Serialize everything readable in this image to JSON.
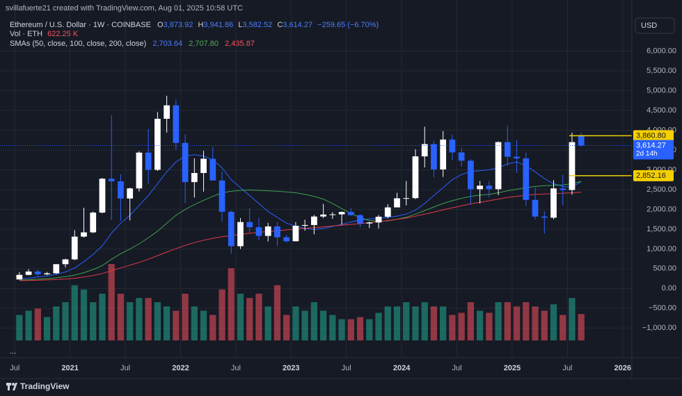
{
  "header": {
    "credit": "svillafuerte21 created with TradingView.com, Aug 01, 2025 10:58 UTC",
    "symbol": "Ethereum / U.S. Dollar · 1W · COINBASE",
    "ohlc": [
      {
        "label": "O",
        "value": "3,873.92"
      },
      {
        "label": "H",
        "value": "3,941.86"
      },
      {
        "label": "L",
        "value": "3,582.52"
      },
      {
        "label": "C",
        "value": "3,614.27"
      }
    ],
    "change": "−259.65 (−6.70%)",
    "volume": {
      "label": "Vol · ETH",
      "value": "622.25 K"
    },
    "sma": {
      "label": "SMAs (50, close, 100, close, 200, close)",
      "values": [
        "2,703.64",
        "2,707.80",
        "2,435.87"
      ]
    },
    "currency": "USD",
    "more": "...",
    "brand": "TradingView"
  },
  "chart_data": {
    "type": "candlestick",
    "x": [
      "2020-07",
      "2020-08",
      "2020-09",
      "2020-10",
      "2020-11",
      "2020-12",
      "2021-01",
      "2021-02",
      "2021-03",
      "2021-04",
      "2021-05",
      "2021-06",
      "2021-07",
      "2021-08",
      "2021-09",
      "2021-10",
      "2021-11",
      "2021-12",
      "2022-01",
      "2022-02",
      "2022-03",
      "2022-04",
      "2022-05",
      "2022-06",
      "2022-07",
      "2022-08",
      "2022-09",
      "2022-10",
      "2022-11",
      "2022-12",
      "2023-01",
      "2023-02",
      "2023-03",
      "2023-04",
      "2023-05",
      "2023-06",
      "2023-07",
      "2023-08",
      "2023-09",
      "2023-10",
      "2023-11",
      "2023-12",
      "2024-01",
      "2024-02",
      "2024-03",
      "2024-04",
      "2024-05",
      "2024-06",
      "2024-07",
      "2024-08",
      "2024-09",
      "2024-10",
      "2024-11",
      "2024-12",
      "2025-01",
      "2025-02",
      "2025-03",
      "2025-04",
      "2025-05",
      "2025-06",
      "2025-07",
      "2025-08"
    ],
    "open": [
      230,
      345,
      430,
      360,
      386,
      615,
      737,
      1312,
      1420,
      1920,
      2775,
      2710,
      2275,
      2530,
      3435,
      3000,
      4290,
      4630,
      3680,
      2690,
      2920,
      3280,
      2730,
      1940,
      1070,
      1680,
      1550,
      1330,
      1570,
      1295,
      1195,
      1585,
      1605,
      1820,
      1870,
      1875,
      1935,
      1855,
      1645,
      1670,
      1815,
      2050,
      2280,
      2285,
      3340,
      3650,
      3010,
      3765,
      3440,
      3230,
      2510,
      2600,
      2510,
      3700,
      3330,
      3290,
      2240,
      1820,
      1790,
      2530,
      2490,
      3873.92
    ],
    "high": [
      415,
      490,
      480,
      420,
      620,
      755,
      1475,
      2040,
      1945,
      2795,
      4380,
      2890,
      2550,
      3470,
      4030,
      4460,
      4870,
      4780,
      3900,
      3290,
      3480,
      3580,
      2960,
      1970,
      1780,
      2030,
      1790,
      1660,
      1680,
      1350,
      1680,
      1740,
      1860,
      2140,
      1930,
      1950,
      2030,
      1880,
      1690,
      1860,
      2130,
      2420,
      2720,
      3520,
      4090,
      3730,
      3980,
      3890,
      3560,
      3270,
      2720,
      2720,
      3720,
      4110,
      3750,
      3440,
      2550,
      1950,
      2740,
      2880,
      3940,
      3941.86
    ],
    "low": [
      225,
      335,
      310,
      335,
      370,
      535,
      715,
      1290,
      1400,
      1900,
      1730,
      1710,
      1720,
      2450,
      2650,
      2970,
      3940,
      3500,
      2160,
      2300,
      2450,
      2770,
      1700,
      880,
      1000,
      1420,
      1220,
      1190,
      1080,
      1160,
      1190,
      1460,
      1370,
      1780,
      1760,
      1620,
      1840,
      1550,
      1530,
      1520,
      1770,
      2050,
      2100,
      2260,
      3060,
      2810,
      2820,
      3240,
      3080,
      2120,
      2150,
      2310,
      2360,
      3100,
      2920,
      2090,
      1750,
      1390,
      1750,
      2110,
      2370,
      3582.52
    ],
    "close": [
      345,
      430,
      360,
      386,
      615,
      737,
      1312,
      1420,
      1920,
      2775,
      2710,
      2275,
      2530,
      3435,
      3000,
      4290,
      4630,
      3680,
      2690,
      2920,
      3280,
      2730,
      1940,
      1070,
      1680,
      1550,
      1330,
      1570,
      1295,
      1195,
      1585,
      1605,
      1820,
      1870,
      1875,
      1935,
      1855,
      1645,
      1670,
      1815,
      2050,
      2280,
      2285,
      3340,
      3650,
      3010,
      3765,
      3440,
      3230,
      2510,
      2600,
      2510,
      3700,
      3330,
      3290,
      2240,
      1820,
      1790,
      2530,
      2490,
      3700,
      3614.27
    ],
    "volume": [
      600,
      700,
      750,
      550,
      800,
      900,
      1300,
      1200,
      900,
      1100,
      1800,
      1100,
      900,
      1000,
      1000,
      900,
      800,
      700,
      1100,
      800,
      700,
      600,
      1200,
      1700,
      1100,
      1000,
      1100,
      800,
      1300,
      600,
      800,
      700,
      900,
      700,
      600,
      500,
      500,
      550,
      500,
      650,
      800,
      800,
      900,
      800,
      900,
      800,
      800,
      600,
      650,
      900,
      700,
      650,
      900,
      900,
      800,
      900,
      800,
      700,
      850,
      600,
      1000,
      622.25
    ],
    "series": [
      {
        "name": "SMA 50",
        "color": "#2962ff",
        "values": [
          240,
          260,
          290,
          320,
          360,
          420,
          520,
          680,
          860,
          1080,
          1400,
          1650,
          1850,
          2100,
          2350,
          2650,
          2950,
          3200,
          3350,
          3380,
          3350,
          3250,
          3050,
          2750,
          2550,
          2350,
          2150,
          1950,
          1800,
          1650,
          1580,
          1520,
          1490,
          1520,
          1570,
          1620,
          1680,
          1730,
          1760,
          1770,
          1800,
          1830,
          1880,
          1980,
          2150,
          2350,
          2550,
          2750,
          2880,
          2950,
          2980,
          3000,
          3050,
          3150,
          3200,
          3100,
          2950,
          2780,
          2650,
          2580,
          2560,
          2703.64
        ]
      },
      {
        "name": "SMA 100",
        "color": "#3fa34d",
        "values": [
          210,
          220,
          235,
          250,
          270,
          300,
          340,
          400,
          480,
          580,
          740,
          880,
          1000,
          1130,
          1280,
          1450,
          1650,
          1850,
          2000,
          2120,
          2230,
          2330,
          2420,
          2460,
          2480,
          2490,
          2480,
          2470,
          2460,
          2440,
          2420,
          2380,
          2330,
          2260,
          2150,
          2020,
          1900,
          1790,
          1720,
          1700,
          1710,
          1750,
          1800,
          1880,
          1970,
          2060,
          2150,
          2220,
          2280,
          2330,
          2360,
          2380,
          2420,
          2470,
          2510,
          2550,
          2580,
          2600,
          2610,
          2620,
          2650,
          2707.8
        ]
      },
      {
        "name": "SMA 200",
        "color": "#e53945",
        "values": [
          200,
          205,
          210,
          218,
          228,
          240,
          260,
          290,
          330,
          380,
          450,
          520,
          590,
          660,
          740,
          830,
          920,
          1010,
          1090,
          1160,
          1220,
          1270,
          1310,
          1340,
          1370,
          1400,
          1420,
          1440,
          1460,
          1480,
          1500,
          1520,
          1540,
          1560,
          1580,
          1600,
          1620,
          1640,
          1660,
          1690,
          1720,
          1750,
          1780,
          1830,
          1880,
          1930,
          1990,
          2040,
          2090,
          2140,
          2180,
          2220,
          2260,
          2300,
          2330,
          2360,
          2380,
          2390,
          2400,
          2410,
          2420,
          2435.87
        ]
      }
    ],
    "up_color": "#ffffff",
    "down_color": "#2962ff",
    "volume_up_color": "rgba(34,171,148,0.55)",
    "volume_down_color": "rgba(247,82,95,0.55)",
    "xlim": [
      "2020-06",
      "2026-02"
    ],
    "xticks": [
      {
        "value": "2020-07",
        "label": "Jul"
      },
      {
        "value": "2021-01",
        "label": "2021"
      },
      {
        "value": "2021-07",
        "label": "Jul"
      },
      {
        "value": "2022-01",
        "label": "2022"
      },
      {
        "value": "2022-07",
        "label": "Jul"
      },
      {
        "value": "2023-01",
        "label": "2023"
      },
      {
        "value": "2023-07",
        "label": "Jul"
      },
      {
        "value": "2024-01",
        "label": "2024"
      },
      {
        "value": "2024-07",
        "label": "Jul"
      },
      {
        "value": "2025-01",
        "label": "2025"
      },
      {
        "value": "2025-07",
        "label": "Jul"
      },
      {
        "value": "2026-01",
        "label": "2026"
      }
    ],
    "ylim": [
      -1750,
      6800
    ],
    "yticks": [
      {
        "value": 6000,
        "label": "6,000.00"
      },
      {
        "value": 5500,
        "label": "5,500.00"
      },
      {
        "value": 5000,
        "label": "5,000.00"
      },
      {
        "value": 4500,
        "label": "4,500.00"
      },
      {
        "value": 4000,
        "label": "4,000.00"
      },
      {
        "value": 3500,
        "label": "3,500.00"
      },
      {
        "value": 3000,
        "label": "3,000.00"
      },
      {
        "value": 2500,
        "label": "2,500.00"
      },
      {
        "value": 2000,
        "label": "2,000.00"
      },
      {
        "value": 1500,
        "label": "1,500.00"
      },
      {
        "value": 1000,
        "label": "1,000.00"
      },
      {
        "value": 500,
        "label": "500.00"
      },
      {
        "value": 0,
        "label": "0.00"
      },
      {
        "value": -500,
        "label": "−500.00"
      },
      {
        "value": -1000,
        "label": "−1,000.00"
      }
    ],
    "grid": true,
    "levels": [
      {
        "value": 3860.8,
        "label": "3,860.80",
        "color": "#f5d000"
      },
      {
        "value": 2852.16,
        "label": "2,852.16",
        "color": "#f5d000"
      }
    ],
    "last_price": {
      "value": 3614.27,
      "label": "3,614.27",
      "countdown": "2d 14h",
      "color": "#2962ff"
    }
  }
}
